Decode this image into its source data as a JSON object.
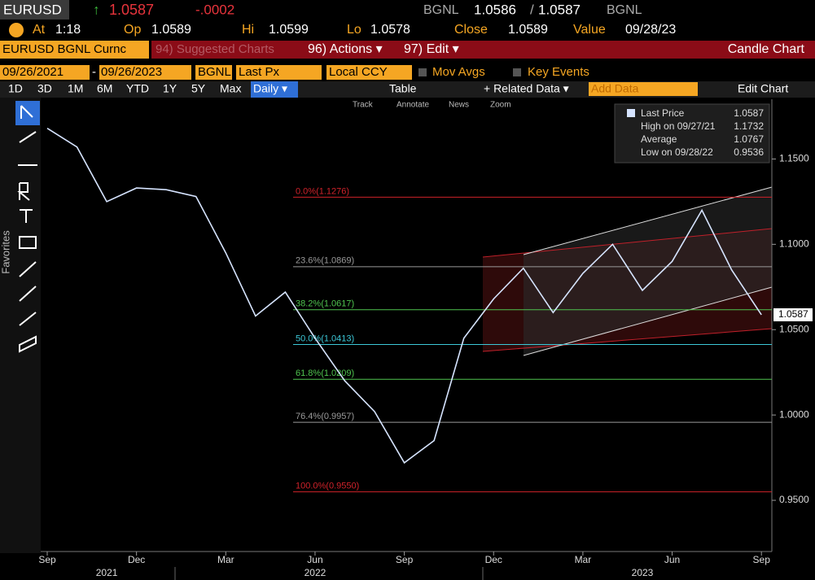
{
  "header": {
    "ticker": "EURUSD",
    "arrow": "↑",
    "price": "1.0587",
    "change": "-.0002",
    "source": "BGNL",
    "bid": "1.0586",
    "slash": "/",
    "ask": "1.0587",
    "source2": "BGNL",
    "at_label": "At",
    "at": "1:18",
    "op_label": "Op",
    "op": "1.0589",
    "hi_label": "Hi",
    "hi": "1.0599",
    "lo_label": "Lo",
    "lo": "1.0578",
    "close_label": "Close",
    "close": "1.0589",
    "value_label": "Value",
    "value": "09/28/23"
  },
  "toolbar": {
    "security": "EURUSD BGNL Curnc",
    "suggested": "94) Suggested Charts",
    "actions": "96) Actions ▾",
    "edit": "97) Edit ▾",
    "chart_kind": "Candle Chart",
    "start_date": "09/26/2021",
    "dash": "-",
    "end_date": "09/26/2023",
    "pricing": "BGNL",
    "field": "Last Px",
    "currency": "Local CCY",
    "mov_avgs": "Mov Avgs",
    "key_events": "Key Events",
    "ranges": [
      "1D",
      "3D",
      "1M",
      "6M",
      "YTD",
      "1Y",
      "5Y",
      "Max"
    ],
    "period": "Daily ▾",
    "table": "Table",
    "related": "+ Related Data ▾",
    "add_data": "Add Data",
    "edit_chart": "Edit Chart",
    "tools": [
      "Track",
      "Annotate",
      "News",
      "Zoom"
    ],
    "favorites": "Favorites"
  },
  "chart_data": {
    "type": "line",
    "x": [
      "2021-09",
      "2021-10",
      "2021-11",
      "2021-12",
      "2022-01",
      "2022-02",
      "2022-03",
      "2022-04",
      "2022-05",
      "2022-06",
      "2022-07",
      "2022-08",
      "2022-09",
      "2022-10",
      "2022-11",
      "2022-12",
      "2023-01",
      "2023-02",
      "2023-03",
      "2023-04",
      "2023-05",
      "2023-06",
      "2023-07",
      "2023-08",
      "2023-09"
    ],
    "series": [
      {
        "name": "Last Price",
        "color": "#d6e4ff",
        "values": [
          1.168,
          1.157,
          1.125,
          1.133,
          1.132,
          1.128,
          1.095,
          1.058,
          1.072,
          1.045,
          1.02,
          1.002,
          0.972,
          0.985,
          1.045,
          1.068,
          1.086,
          1.06,
          1.083,
          1.1,
          1.073,
          1.09,
          1.12,
          1.085,
          1.0587
        ]
      }
    ],
    "ylim": [
      0.92,
      1.185
    ],
    "yticks": [
      {
        "value": 0.95,
        "label": "0.9500"
      },
      {
        "value": 1.0,
        "label": "1.0000"
      },
      {
        "value": 1.05,
        "label": "1.0500"
      },
      {
        "value": 1.1,
        "label": "1.1000"
      },
      {
        "value": 1.15,
        "label": "1.1500"
      }
    ],
    "xticks": [
      {
        "value": "2021-09",
        "label": "Sep"
      },
      {
        "value": "2021-12",
        "label": "Dec"
      },
      {
        "value": "2022-03",
        "label": "Mar"
      },
      {
        "value": "2022-06",
        "label": "Jun"
      },
      {
        "value": "2022-09",
        "label": "Sep"
      },
      {
        "value": "2022-12",
        "label": "Dec"
      },
      {
        "value": "2023-03",
        "label": "Mar"
      },
      {
        "value": "2023-06",
        "label": "Jun"
      },
      {
        "value": "2023-09",
        "label": "Sep"
      }
    ],
    "years": [
      {
        "value": "2021-11",
        "label": "2021"
      },
      {
        "value": "2022-06",
        "label": "2022"
      },
      {
        "value": "2023-05",
        "label": "2023"
      }
    ],
    "levels": [
      {
        "label": "0.0%(1.1276)",
        "value": 1.1276,
        "color": "#d0222a"
      },
      {
        "label": "23.6%(1.0869)",
        "value": 1.0869,
        "color": "#9a9a9a"
      },
      {
        "label": "38.2%(1.0617)",
        "value": 1.0617,
        "color": "#4fc44f"
      },
      {
        "label": "50.0%(1.0413)",
        "value": 1.0413,
        "color": "#3cc8d8"
      },
      {
        "label": "61.8%(1.0209)",
        "value": 1.0209,
        "color": "#4fc44f"
      },
      {
        "label": "76.4%(0.9957)",
        "value": 0.9957,
        "color": "#9a9a9a"
      },
      {
        "label": "100.0%(0.9550)",
        "value": 0.955,
        "color": "#d0222a"
      }
    ],
    "last_value": {
      "value": 1.0587,
      "label": "1.0587"
    },
    "stats": [
      {
        "label": "Last Price",
        "value": "1.0587"
      },
      {
        "label": "High on 09/27/21",
        "value": "1.1732"
      },
      {
        "label": "Average",
        "value": "1.0767"
      },
      {
        "label": "Low on 09/28/22",
        "value": "0.9536"
      }
    ]
  }
}
